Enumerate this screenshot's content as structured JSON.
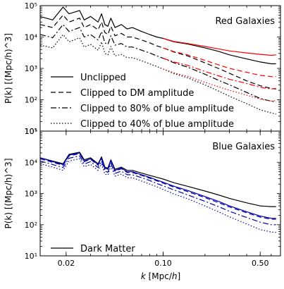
{
  "chart_data": [
    {
      "type": "line",
      "panel_label": "Red Galaxies",
      "xlabel": "",
      "ylabel": "P(k)  [(Mpc/h)^3]",
      "xscale": "log",
      "yscale": "log",
      "xlim": [
        0.013,
        0.7
      ],
      "ylim": [
        10,
        100000
      ],
      "yticks": [
        {
          "v": 10,
          "label": "10¹"
        },
        {
          "v": 100,
          "label": "10²"
        },
        {
          "v": 1000,
          "label": "10³"
        },
        {
          "v": 10000,
          "label": "10⁴"
        },
        {
          "v": 100000,
          "label": "10⁵"
        }
      ],
      "legend": {
        "placement": "lower-left",
        "entries": [
          {
            "label": "Unclipped",
            "dash": "solid"
          },
          {
            "label": "Clipped to DM amplitude",
            "dash": "dashed"
          },
          {
            "label": "Clipped to 80% of blue amplitude",
            "dash": "dashdot"
          },
          {
            "label": "Clipped to 40% of blue amplitude",
            "dash": "dotted"
          }
        ]
      },
      "series": [
        {
          "color": "#000000",
          "dash": "solid",
          "x": [
            0.013,
            0.016,
            0.019,
            0.021,
            0.025,
            0.027,
            0.03,
            0.034,
            0.036,
            0.038,
            0.04,
            0.042,
            0.045,
            0.05,
            0.055,
            0.06,
            0.07,
            0.08,
            0.09,
            0.1,
            0.12,
            0.15,
            0.2,
            0.25,
            0.3,
            0.4,
            0.5,
            0.6,
            0.65
          ],
          "y": [
            45000,
            35000,
            90000,
            55000,
            70000,
            35000,
            45000,
            30000,
            55000,
            25000,
            22000,
            40000,
            20000,
            25000,
            18000,
            20000,
            15000,
            12000,
            10000,
            9000,
            7000,
            6000,
            4500,
            3500,
            2700,
            2000,
            1600,
            1400,
            1400
          ]
        },
        {
          "color": "#ff0000",
          "dash": "solid",
          "x": [
            0.1,
            0.12,
            0.15,
            0.2,
            0.25,
            0.3,
            0.4,
            0.5,
            0.6,
            0.65
          ],
          "y": [
            9000,
            7200,
            6200,
            5000,
            4200,
            3600,
            3100,
            2800,
            2600,
            2700
          ]
        },
        {
          "color": "#000000",
          "dash": "dashed",
          "x": [
            0.013,
            0.016,
            0.019,
            0.021,
            0.025,
            0.027,
            0.03,
            0.034,
            0.036,
            0.038,
            0.04,
            0.042,
            0.045,
            0.05,
            0.055,
            0.06,
            0.07,
            0.08,
            0.09,
            0.1,
            0.12,
            0.15,
            0.2,
            0.25,
            0.3,
            0.4,
            0.5,
            0.6,
            0.65
          ],
          "y": [
            25000,
            20000,
            50000,
            30000,
            40000,
            20000,
            25000,
            17000,
            30000,
            14000,
            12000,
            22000,
            11000,
            13000,
            10000,
            10000,
            8000,
            6500,
            5200,
            4500,
            3300,
            2500,
            1500,
            1000,
            700,
            400,
            280,
            230,
            220
          ]
        },
        {
          "color": "#ff0000",
          "dash": "dashed",
          "x": [
            0.1,
            0.12,
            0.15,
            0.2,
            0.25,
            0.3,
            0.4,
            0.5,
            0.6,
            0.65
          ],
          "y": [
            4500,
            3400,
            2700,
            1800,
            1300,
            1000,
            750,
            600,
            550,
            550
          ]
        },
        {
          "color": "#000000",
          "dash": "dashdot",
          "x": [
            0.013,
            0.016,
            0.019,
            0.021,
            0.025,
            0.027,
            0.03,
            0.034,
            0.036,
            0.038,
            0.04,
            0.042,
            0.045,
            0.05,
            0.055,
            0.06,
            0.07,
            0.08,
            0.09,
            0.1,
            0.12,
            0.15,
            0.2,
            0.25,
            0.3,
            0.4,
            0.5,
            0.6,
            0.65
          ],
          "y": [
            12000,
            9500,
            25000,
            15000,
            20000,
            10000,
            12000,
            8000,
            15000,
            6500,
            5800,
            11000,
            5500,
            6200,
            4800,
            4800,
            3800,
            3100,
            2500,
            2100,
            1500,
            1100,
            650,
            420,
            300,
            170,
            110,
            90,
            85
          ]
        },
        {
          "color": "#ff0000",
          "dash": "dashdot",
          "x": [
            0.1,
            0.12,
            0.15,
            0.2,
            0.25,
            0.3,
            0.4,
            0.5,
            0.6,
            0.65
          ],
          "y": [
            2100,
            1600,
            1250,
            800,
            580,
            450,
            330,
            250,
            220,
            230
          ]
        },
        {
          "color": "#000000",
          "dash": "dotted",
          "x": [
            0.013,
            0.016,
            0.019,
            0.021,
            0.025,
            0.027,
            0.03,
            0.034,
            0.036,
            0.038,
            0.04,
            0.042,
            0.045,
            0.05,
            0.055,
            0.06,
            0.07,
            0.08,
            0.09,
            0.1,
            0.12,
            0.15,
            0.2,
            0.25,
            0.3,
            0.4,
            0.5,
            0.6,
            0.65
          ],
          "y": [
            5500,
            4500,
            12000,
            7000,
            9500,
            4800,
            5800,
            3800,
            7000,
            3000,
            2700,
            5000,
            2500,
            2800,
            2200,
            2200,
            1750,
            1400,
            1150,
            950,
            680,
            500,
            300,
            190,
            130,
            75,
            48,
            38,
            35
          ]
        },
        {
          "color": "#ff0000",
          "dash": "dotted",
          "x": [
            0.1,
            0.12,
            0.15,
            0.2,
            0.25,
            0.3,
            0.4,
            0.5,
            0.6,
            0.65
          ],
          "y": [
            950,
            720,
            560,
            360,
            260,
            200,
            140,
            105,
            90,
            95
          ]
        }
      ]
    },
    {
      "type": "line",
      "panel_label": "Blue Galaxies",
      "xlabel": "k  [Mpc/h]",
      "ylabel": "P(k)  [(Mpc/h)^3]",
      "xscale": "log",
      "yscale": "log",
      "xlim": [
        0.013,
        0.7
      ],
      "ylim": [
        10,
        100000
      ],
      "xticks": [
        {
          "v": 0.02,
          "label": "0.02"
        },
        {
          "v": 0.1,
          "label": "0.10"
        },
        {
          "v": 0.5,
          "label": "0.50"
        }
      ],
      "yticks": [
        {
          "v": 10,
          "label": "10¹"
        },
        {
          "v": 100,
          "label": "10²"
        },
        {
          "v": 1000,
          "label": "10³"
        },
        {
          "v": 10000,
          "label": "10⁴"
        },
        {
          "v": 100000,
          "label": "10⁵"
        }
      ],
      "legend": {
        "placement": "lower-left",
        "entries": [
          {
            "label": "Dark Matter",
            "dash": "solid"
          }
        ]
      },
      "series": [
        {
          "color": "#000000",
          "dash": "solid",
          "x": [
            0.013,
            0.016,
            0.019,
            0.021,
            0.025,
            0.027,
            0.03,
            0.034,
            0.036,
            0.038,
            0.04,
            0.042,
            0.045,
            0.05,
            0.055,
            0.06,
            0.07,
            0.08,
            0.09,
            0.1,
            0.12,
            0.15,
            0.2,
            0.25,
            0.3,
            0.4,
            0.5,
            0.6,
            0.65
          ],
          "y": [
            14000,
            11000,
            9000,
            18000,
            21000,
            12000,
            14000,
            9000,
            15000,
            7000,
            6500,
            12000,
            6000,
            7000,
            5500,
            5500,
            4500,
            3800,
            3300,
            2900,
            2200,
            1700,
            1200,
            900,
            700,
            500,
            400,
            380,
            380
          ]
        },
        {
          "color": "#0000aa",
          "dash": "solid",
          "x": [
            0.013,
            0.016,
            0.019,
            0.021,
            0.025,
            0.027,
            0.03,
            0.034,
            0.036,
            0.038,
            0.04,
            0.042,
            0.045,
            0.05,
            0.055,
            0.06,
            0.07,
            0.08,
            0.09,
            0.1,
            0.12,
            0.15,
            0.2,
            0.25,
            0.3,
            0.4,
            0.5,
            0.6,
            0.65
          ],
          "y": [
            14000,
            10500,
            8500,
            17000,
            20000,
            11000,
            13000,
            8500,
            14000,
            6500,
            6000,
            11500,
            5500,
            6500,
            5000,
            5000,
            4000,
            3300,
            2700,
            2300,
            1700,
            1250,
            800,
            560,
            400,
            260,
            190,
            160,
            160
          ]
        },
        {
          "color": "#0000aa",
          "dash": "dashed",
          "x": [
            0.013,
            0.016,
            0.019,
            0.021,
            0.025,
            0.027,
            0.03,
            0.034,
            0.036,
            0.038,
            0.04,
            0.042,
            0.045,
            0.05,
            0.055,
            0.06,
            0.07,
            0.08,
            0.09,
            0.1,
            0.12,
            0.15,
            0.2,
            0.25,
            0.3,
            0.4,
            0.5,
            0.6,
            0.65
          ],
          "y": [
            13000,
            10000,
            8000,
            16000,
            19000,
            10500,
            12500,
            8000,
            13000,
            6200,
            5700,
            11000,
            5200,
            6200,
            4700,
            4700,
            3800,
            3100,
            2550,
            2150,
            1600,
            1150,
            740,
            510,
            370,
            240,
            175,
            150,
            150
          ]
        },
        {
          "color": "#0000aa",
          "dash": "dashdot",
          "x": [
            0.013,
            0.016,
            0.019,
            0.021,
            0.025,
            0.027,
            0.03,
            0.034,
            0.036,
            0.038,
            0.04,
            0.042,
            0.045,
            0.05,
            0.055,
            0.06,
            0.07,
            0.08,
            0.09,
            0.1,
            0.12,
            0.15,
            0.2,
            0.25,
            0.3,
            0.4,
            0.5,
            0.6,
            0.65
          ],
          "y": [
            11000,
            8500,
            6800,
            13500,
            16000,
            8800,
            10500,
            6800,
            11000,
            5200,
            4800,
            9200,
            4400,
            5200,
            4000,
            4000,
            3200,
            2600,
            2100,
            1750,
            1300,
            900,
            560,
            380,
            270,
            170,
            120,
            100,
            100
          ]
        },
        {
          "color": "#0000aa",
          "dash": "dotted",
          "x": [
            0.013,
            0.016,
            0.019,
            0.021,
            0.025,
            0.027,
            0.03,
            0.034,
            0.036,
            0.038,
            0.04,
            0.042,
            0.045,
            0.05,
            0.055,
            0.06,
            0.07,
            0.08,
            0.09,
            0.1,
            0.12,
            0.15,
            0.2,
            0.25,
            0.3,
            0.4,
            0.5,
            0.6,
            0.65
          ],
          "y": [
            9000,
            7000,
            5500,
            11000,
            13000,
            7200,
            8500,
            5500,
            9000,
            4200,
            3900,
            7500,
            3600,
            4200,
            3200,
            3200,
            2500,
            2000,
            1650,
            1350,
            960,
            680,
            400,
            260,
            180,
            105,
            70,
            58,
            57
          ]
        }
      ]
    }
  ]
}
